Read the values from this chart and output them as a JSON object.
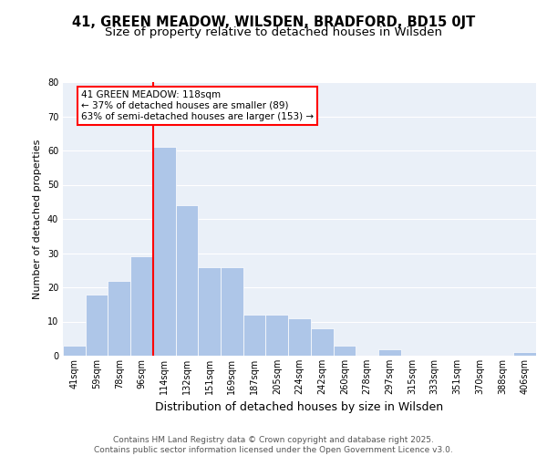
{
  "title1": "41, GREEN MEADOW, WILSDEN, BRADFORD, BD15 0JT",
  "title2": "Size of property relative to detached houses in Wilsden",
  "xlabel": "Distribution of detached houses by size in Wilsden",
  "ylabel": "Number of detached properties",
  "categories": [
    "41sqm",
    "59sqm",
    "78sqm",
    "96sqm",
    "114sqm",
    "132sqm",
    "151sqm",
    "169sqm",
    "187sqm",
    "205sqm",
    "224sqm",
    "242sqm",
    "260sqm",
    "278sqm",
    "297sqm",
    "315sqm",
    "333sqm",
    "351sqm",
    "370sqm",
    "388sqm",
    "406sqm"
  ],
  "values": [
    3,
    18,
    22,
    29,
    61,
    44,
    26,
    26,
    12,
    12,
    11,
    8,
    3,
    0,
    2,
    0,
    0,
    0,
    0,
    0,
    1
  ],
  "bar_color": "#aec6e8",
  "vline_color": "red",
  "vline_x_index": 4,
  "annotation_text": "41 GREEN MEADOW: 118sqm\n← 37% of detached houses are smaller (89)\n63% of semi-detached houses are larger (153) →",
  "annotation_box_color": "white",
  "annotation_box_edge_color": "red",
  "ylim": [
    0,
    80
  ],
  "yticks": [
    0,
    10,
    20,
    30,
    40,
    50,
    60,
    70,
    80
  ],
  "background_color": "#eaf0f8",
  "footer": "Contains HM Land Registry data © Crown copyright and database right 2025.\nContains public sector information licensed under the Open Government Licence v3.0.",
  "title1_fontsize": 10.5,
  "title2_fontsize": 9.5,
  "xlabel_fontsize": 9,
  "ylabel_fontsize": 8,
  "tick_fontsize": 7,
  "footer_fontsize": 6.5,
  "ann_fontsize": 7.5
}
